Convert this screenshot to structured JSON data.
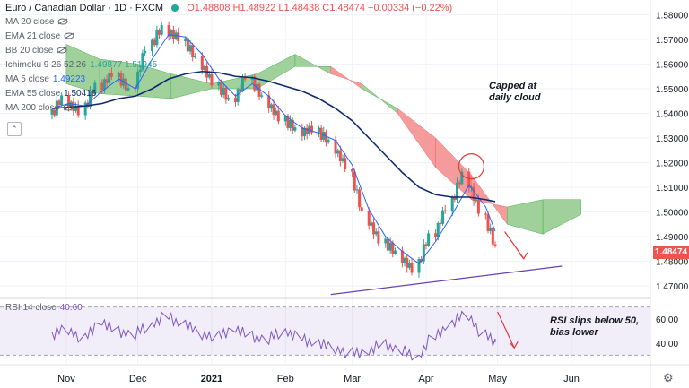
{
  "header": {
    "symbol": "Euro / Canadian Dollar · 1D · FXCM",
    "ohlc": "O1.48808 H1.48922 L1.48438 C1.48474 −0.00334 (−0.22%)"
  },
  "indicators": [
    {
      "label": "MA 20 close",
      "value": "",
      "hidden": true
    },
    {
      "label": "EMA 21 close",
      "value": "",
      "hidden": true
    },
    {
      "label": "BB 20 close",
      "value": "",
      "hidden": true
    },
    {
      "label": "Ichimoku 9 26 52 26",
      "value": "1.49877  1.51945",
      "hidden": false
    },
    {
      "label": "MA 5 close",
      "value": "1.49223",
      "hidden": false
    },
    {
      "label": "EMA 55 close",
      "value": "1.50416",
      "hidden": false
    },
    {
      "label": "MA 200 close",
      "value": "",
      "hidden": true
    }
  ],
  "colors": {
    "up": "#26a69a",
    "down": "#ef5350",
    "cloud_bear": "#f48a8a",
    "cloud_bull": "#8fc98a",
    "ma5": "#2962ff",
    "ema55": "#0d2a6e",
    "rsi": "#7e57c2",
    "trend": "#6a3fb5"
  },
  "annotations": {
    "cloud_note_1": "Capped at",
    "cloud_note_2": "daily cloud",
    "rsi_note_1": "RSI slips below 50,",
    "rsi_note_2": "bias lower"
  },
  "rsi_panel": {
    "label": "RSI 14 close",
    "value": "40.60"
  },
  "last_price": "1.48474",
  "chart_data": [
    {
      "type": "candlestick",
      "title": "Euro / Canadian Dollar · 1D · FXCM",
      "x": [
        "2020-10-26",
        "2020-11-02",
        "2020-11-09",
        "2020-11-16",
        "2020-11-23",
        "2020-11-30",
        "2020-12-07",
        "2020-12-14",
        "2020-12-21",
        "2020-12-28",
        "2021-01-04",
        "2021-01-11",
        "2021-01-18",
        "2021-01-25",
        "2021-02-01",
        "2021-02-08",
        "2021-02-15",
        "2021-02-22",
        "2021-03-01",
        "2021-03-08",
        "2021-03-15",
        "2021-03-22",
        "2021-03-29",
        "2021-04-05",
        "2021-04-12",
        "2021-04-19",
        "2021-04-26",
        "2021-04-30"
      ],
      "series": [
        {
          "name": "Close",
          "values": [
            1.5375,
            1.546,
            1.54,
            1.551,
            1.5555,
            1.549,
            1.566,
            1.5745,
            1.57,
            1.562,
            1.552,
            1.545,
            1.5545,
            1.546,
            1.5375,
            1.533,
            1.533,
            1.528,
            1.518,
            1.499,
            1.488,
            1.483,
            1.476,
            1.49,
            1.501,
            1.515,
            1.5,
            1.4847
          ]
        },
        {
          "name": "MA 5 close",
          "values": [
            1.542,
            1.544,
            1.543,
            1.549,
            1.554,
            1.55,
            1.562,
            1.572,
            1.571,
            1.564,
            1.554,
            1.547,
            1.552,
            1.547,
            1.539,
            1.534,
            1.532,
            1.529,
            1.519,
            1.501,
            1.49,
            1.484,
            1.479,
            1.488,
            1.499,
            1.511,
            1.502,
            1.4922
          ]
        },
        {
          "name": "EMA 55 close",
          "values": [
            1.542,
            1.5425,
            1.543,
            1.544,
            1.546,
            1.547,
            1.55,
            1.554,
            1.556,
            1.557,
            1.5565,
            1.555,
            1.5545,
            1.553,
            1.551,
            1.549,
            1.546,
            1.542,
            1.537,
            1.53,
            1.523,
            1.516,
            1.51,
            1.507,
            1.506,
            1.506,
            1.505,
            1.5042
          ]
        }
      ],
      "ichimoku_cloud": {
        "x": [
          "2020-11-01",
          "2020-11-15",
          "2020-12-01",
          "2020-12-15",
          "2021-01-01",
          "2021-01-20",
          "2021-02-05",
          "2021-02-20",
          "2021-03-05",
          "2021-03-20",
          "2021-04-05",
          "2021-04-20",
          "2021-05-05",
          "2021-05-20",
          "2021-06-05"
        ],
        "span_a": [
          1.568,
          1.562,
          1.56,
          1.556,
          1.552,
          1.556,
          1.564,
          1.556,
          1.552,
          1.54,
          1.518,
          1.505,
          1.502,
          1.505,
          1.505
        ],
        "span_b": [
          1.552,
          1.548,
          1.547,
          1.546,
          1.55,
          1.55,
          1.559,
          1.559,
          1.55,
          1.542,
          1.53,
          1.515,
          1.495,
          1.491,
          1.499
        ]
      },
      "trendline": [
        {
          "x": "2021-02-20",
          "y": 1.4665
        },
        {
          "x": "2021-05-28",
          "y": 1.478
        }
      ],
      "y_ticks": [
        "1.58000",
        "1.57000",
        "1.56000",
        "1.55000",
        "1.54000",
        "1.53000",
        "1.52000",
        "1.51000",
        "1.50000",
        "1.49000",
        "1.48000",
        "1.47000"
      ],
      "ylim": [
        1.466,
        1.586
      ],
      "x_ticks": [
        "Nov",
        "Dec",
        "2021",
        "Feb",
        "Mar",
        "Apr",
        "May",
        "Jun"
      ]
    },
    {
      "type": "line",
      "title": "RSI 14 close",
      "series": [
        {
          "name": "RSI 14 close",
          "values": [
            46,
            52,
            43,
            58,
            50,
            47,
            55,
            62,
            56,
            48,
            45,
            52,
            46,
            43,
            50,
            44,
            40,
            36,
            31,
            33,
            39,
            34,
            28,
            45,
            56,
            64,
            46,
            40.6
          ]
        }
      ],
      "bands": [
        30,
        70
      ],
      "y_ticks": [
        "60.00",
        "40.00"
      ],
      "ylim": [
        25,
        75
      ]
    }
  ]
}
